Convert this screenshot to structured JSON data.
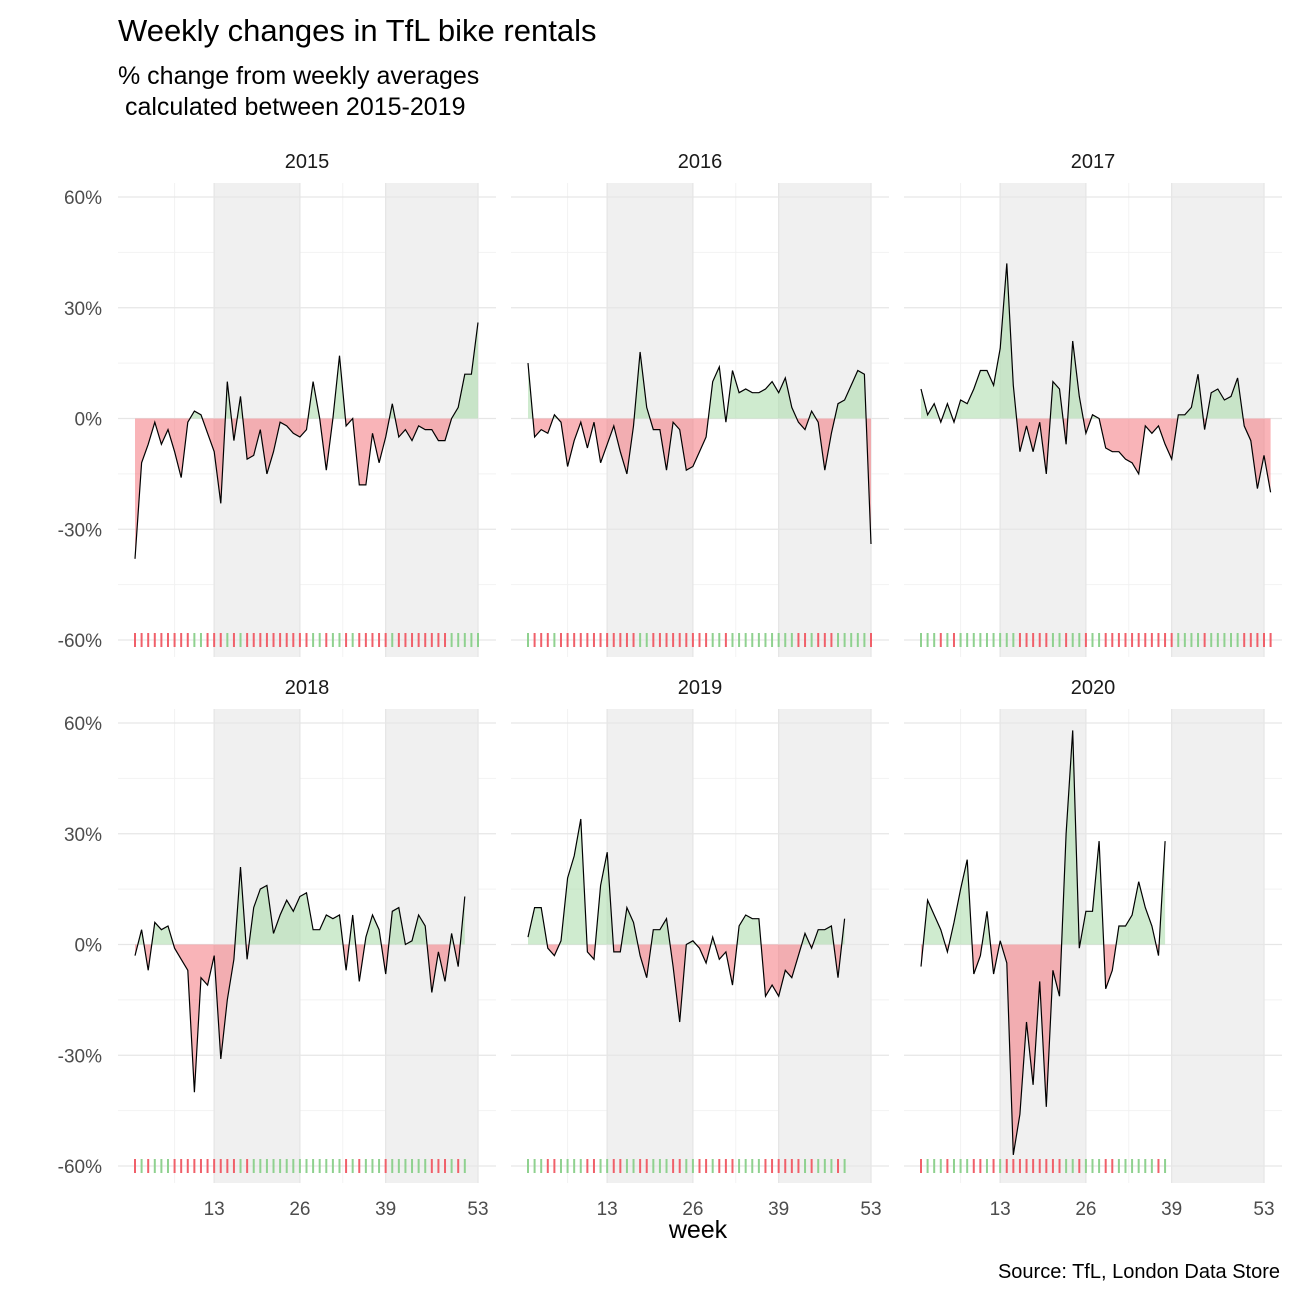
{
  "chart_data": {
    "type": "area",
    "title": "Weekly changes in TfL bike rentals",
    "subtitle_lines": [
      "% change from weekly averages",
      " calculated between 2015-2019"
    ],
    "xlabel": "week",
    "ylabel": "",
    "caption": "Source: TfL, London Data Store",
    "xlim": [
      1,
      53
    ],
    "ylim": [
      -60,
      60
    ],
    "x_ticks": [
      13,
      26,
      39,
      53
    ],
    "y_ticks": [
      60,
      30,
      0,
      -30,
      -60
    ],
    "y_tick_labels": [
      "60%",
      "30%",
      "0%",
      "-30%",
      "-60%"
    ],
    "shaded_week_ranges": [
      [
        13,
        26
      ],
      [
        39,
        53
      ]
    ],
    "grid": true,
    "colors": {
      "positive": "#a8dba8",
      "negative": "#f4777d",
      "shade": "#f0f0f0",
      "line": "#000000"
    },
    "panels": [
      {
        "year": "2015",
        "values": [
          -38,
          -12,
          -7,
          -1,
          -7,
          -3,
          -9,
          -16,
          -1,
          2,
          1,
          -4,
          -9,
          -23,
          10,
          -6,
          6,
          -11,
          -10,
          -3,
          -15,
          -9,
          -1,
          -2,
          -4,
          -5,
          -3,
          10,
          0,
          -14,
          0,
          17,
          -2,
          0,
          -18,
          -18,
          -4,
          -12,
          -5,
          4,
          -5,
          -3,
          -6,
          -2,
          -3,
          -3,
          -6,
          -6,
          0,
          3,
          12,
          12,
          26
        ]
      },
      {
        "year": "2016",
        "values": [
          15,
          -5,
          -3,
          -4,
          1,
          -1,
          -13,
          -6,
          -1,
          -8,
          -1,
          -12,
          -7,
          -2,
          -9,
          -15,
          -2,
          18,
          3,
          -3,
          -3,
          -14,
          -1,
          -3,
          -14,
          -13,
          -9,
          -5,
          10,
          14,
          -1,
          13,
          7,
          8,
          7,
          7,
          8,
          10,
          7,
          11,
          3,
          -1,
          -3,
          2,
          -1,
          -14,
          -4,
          4,
          5,
          9,
          13,
          12,
          -34
        ]
      },
      {
        "year": "2017",
        "values": [
          8,
          1,
          4,
          -1,
          4,
          -1,
          5,
          4,
          8,
          13,
          13,
          9,
          19,
          42,
          9,
          -9,
          -2,
          -9,
          -1,
          -15,
          10,
          8,
          -7,
          21,
          6,
          -4,
          1,
          0,
          -8,
          -9,
          -9,
          -11,
          -12,
          -15,
          -2,
          -4,
          -2,
          -7,
          -11,
          1,
          1,
          3,
          12,
          -3,
          7,
          8,
          5,
          6,
          11,
          -2,
          -6,
          -19,
          -10,
          -20
        ]
      },
      {
        "year": "2018",
        "values": [
          -3,
          4,
          -7,
          6,
          4,
          5,
          -1,
          -4,
          -7,
          -40,
          -9,
          -11,
          -3,
          -31,
          -15,
          -4,
          21,
          -4,
          10,
          15,
          16,
          3,
          8,
          12,
          9,
          13,
          14,
          4,
          4,
          8,
          7,
          8,
          -7,
          8,
          -10,
          2,
          8,
          4,
          -8,
          9,
          10,
          0,
          1,
          8,
          5,
          -13,
          -2,
          -10,
          3,
          -6,
          13
        ]
      },
      {
        "year": "2019",
        "values": [
          2,
          10,
          10,
          -1,
          -3,
          1,
          18,
          24,
          34,
          -2,
          -4,
          16,
          25,
          -2,
          -2,
          10,
          6,
          -3,
          -9,
          4,
          4,
          7,
          -6,
          -21,
          0,
          1,
          -1,
          -5,
          2,
          -4,
          -2,
          -11,
          5,
          8,
          7,
          7,
          -14,
          -11,
          -14,
          -7,
          -9,
          -3,
          3,
          -1,
          4,
          4,
          5,
          -9,
          7
        ]
      },
      {
        "year": "2020",
        "values": [
          -6,
          12,
          8,
          4,
          -2,
          6,
          15,
          23,
          -8,
          -3,
          9,
          -8,
          1,
          -5,
          -57,
          -46,
          -21,
          -38,
          -10,
          -44,
          -7,
          -14,
          30,
          58,
          -1,
          9,
          9,
          28,
          -12,
          -7,
          5,
          5,
          8,
          17,
          10,
          5,
          -3,
          28
        ]
      }
    ]
  }
}
